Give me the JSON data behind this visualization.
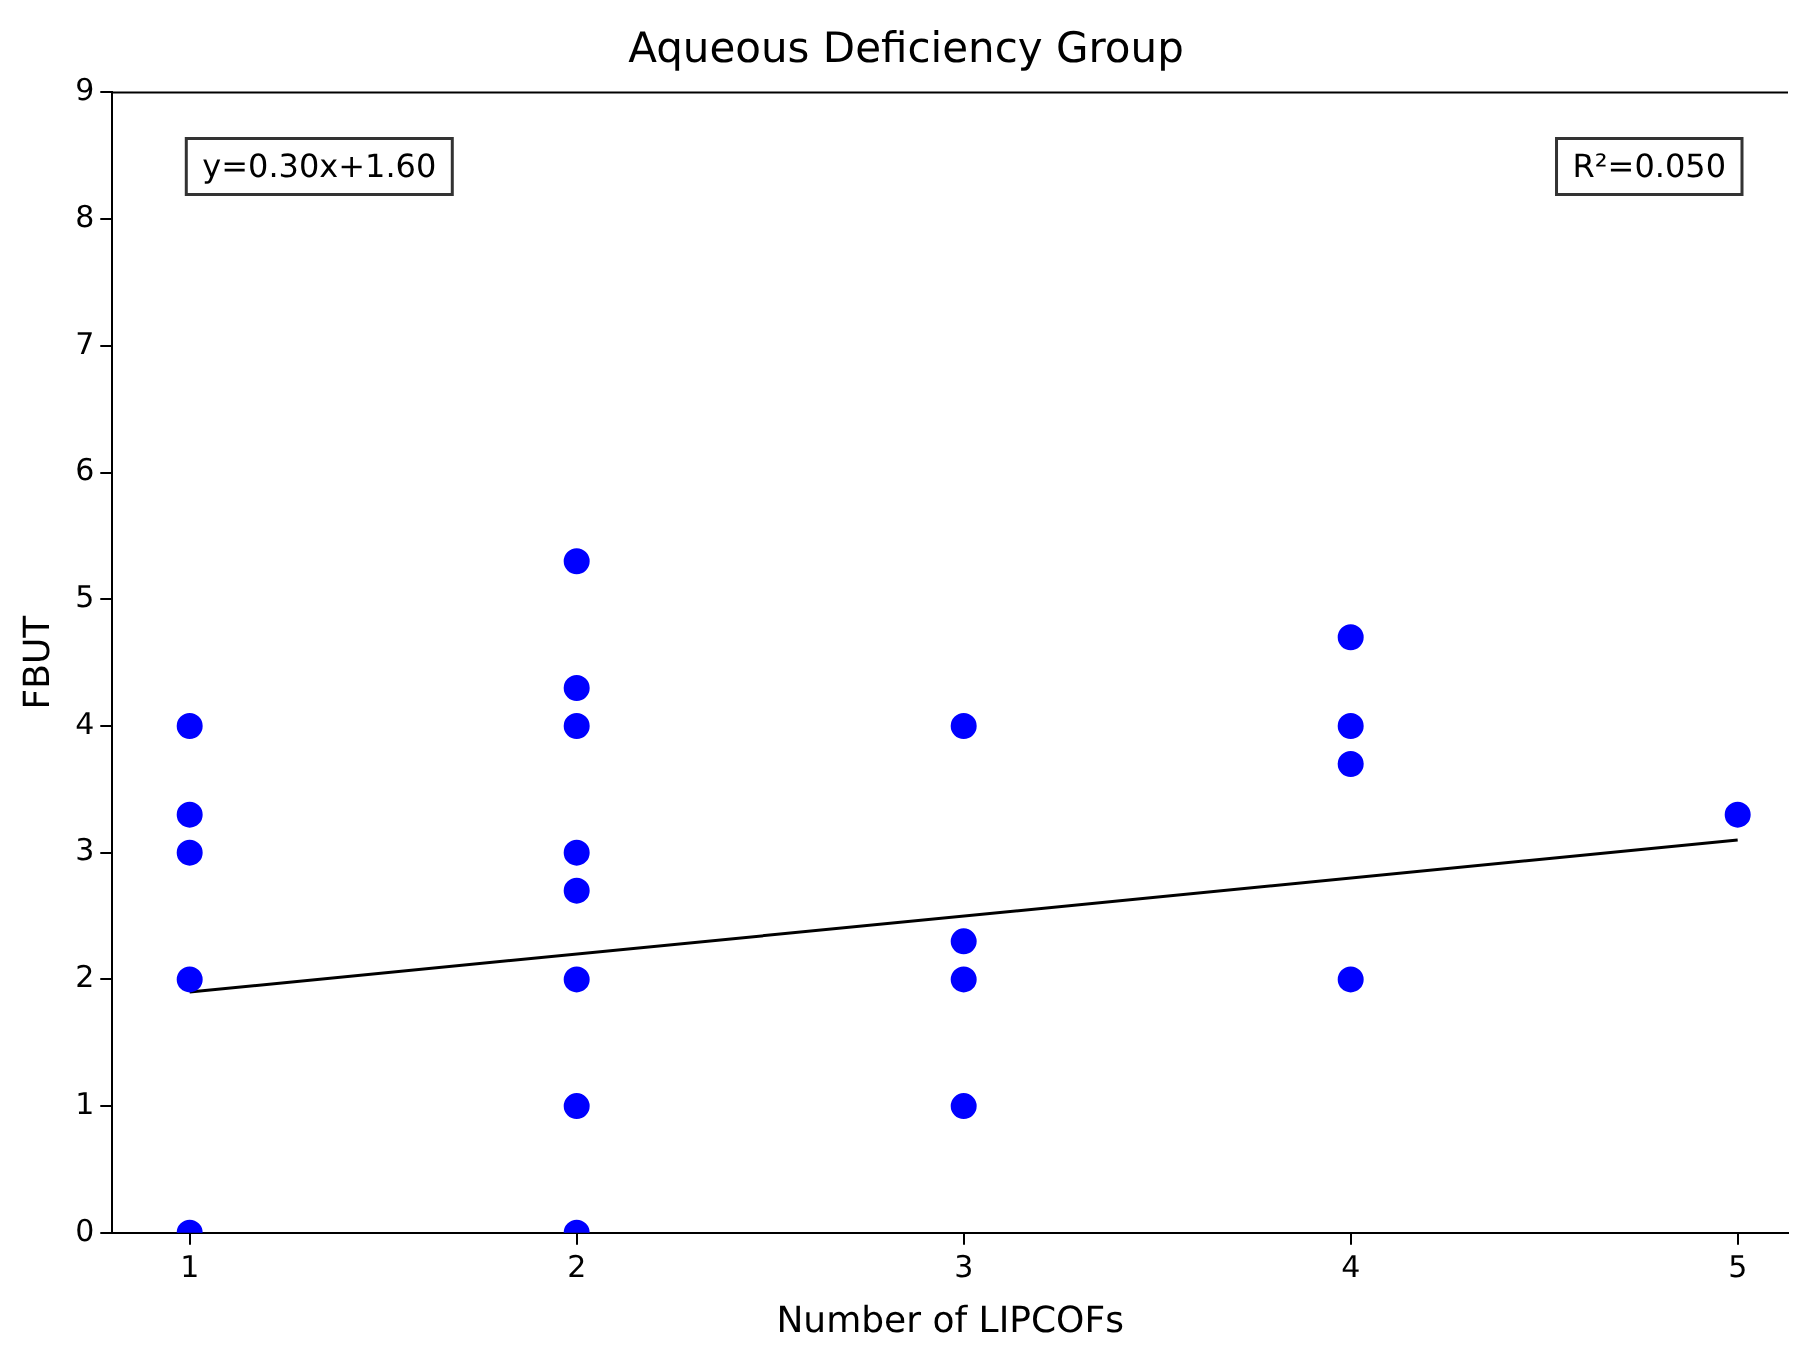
{
  "chart_data": {
    "type": "scatter",
    "title": "Aqueous Deficiency Group",
    "xlabel": "Number of LIPCOFs",
    "ylabel": "FBUT",
    "annotations": [
      "y=0.30x+1.60",
      "R²=0.050"
    ],
    "series": [
      {
        "color": "#0000ff",
        "x": [
          1,
          1,
          1,
          1,
          1,
          2,
          2,
          2,
          2,
          2,
          2,
          2,
          2,
          3,
          3,
          3,
          3,
          4,
          4,
          4,
          4,
          5
        ],
        "values": [
          4,
          3.3,
          3,
          2,
          0,
          5.3,
          4.3,
          4,
          3,
          2.7,
          2,
          1,
          0,
          4,
          2.3,
          2,
          1,
          4.7,
          4,
          3.7,
          2,
          3.3
        ]
      },
      {
        "type": "line",
        "marker": "none",
        "color": "#000000",
        "x": [
          1,
          5
        ],
        "values": [
          1.9,
          3.1
        ]
      }
    ],
    "xlim": [
      0.8,
      5.13
    ],
    "xticks": [
      1,
      2,
      3,
      4,
      5
    ],
    "ylim": [
      0,
      9
    ],
    "yticks": [
      0,
      1,
      2,
      3,
      4,
      5,
      6,
      7,
      8,
      9
    ],
    "grid": false,
    "legend": false,
    "marker": "circle"
  }
}
